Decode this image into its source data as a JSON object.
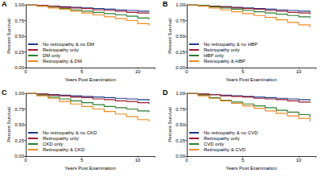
{
  "chart_data": [
    {
      "type": "line",
      "title": "A",
      "line_style": "step",
      "marker": "none",
      "grid": false,
      "legend": "lower left",
      "x_label": "Years Post Examination",
      "y_label": "Percent Survival",
      "x": [
        0,
        1,
        2,
        3,
        4,
        5,
        6,
        7,
        8,
        9,
        10,
        11
      ],
      "xlim": [
        0,
        11.5
      ],
      "xticks": [
        0,
        5,
        10
      ],
      "ylim": [
        0,
        1
      ],
      "yticks": [
        {
          "value": 0,
          "label": "0.00"
        },
        {
          "value": 0.25,
          "label": "0.25"
        },
        {
          "value": 0.5,
          "label": "0.50"
        },
        {
          "value": 0.75,
          "label": "0.75"
        },
        {
          "value": 1,
          "label": "1.00"
        }
      ],
      "series": [
        {
          "name": "No retinopathy & no DM",
          "color": "#1f3a8a",
          "values": [
            1,
            0.99,
            0.98,
            0.97,
            0.96,
            0.95,
            0.94,
            0.93,
            0.92,
            0.91,
            0.9,
            0.89
          ]
        },
        {
          "name": "Retinopathy only",
          "color": "#9b1c31",
          "values": [
            1,
            0.99,
            0.98,
            0.96,
            0.95,
            0.94,
            0.92,
            0.91,
            0.9,
            0.88,
            0.87,
            0.86
          ]
        },
        {
          "name": "DM only",
          "color": "#2e7d32",
          "values": [
            1,
            0.98,
            0.96,
            0.94,
            0.92,
            0.9,
            0.88,
            0.86,
            0.84,
            0.82,
            0.79,
            0.77
          ]
        },
        {
          "name": "Retinopathy & DM",
          "color": "#f08a24",
          "values": [
            1,
            0.98,
            0.95,
            0.93,
            0.9,
            0.87,
            0.84,
            0.81,
            0.78,
            0.75,
            0.7,
            0.67
          ]
        }
      ]
    },
    {
      "type": "line",
      "title": "B",
      "line_style": "step",
      "marker": "none",
      "grid": false,
      "legend": "lower left",
      "x_label": "Years Post Examination",
      "y_label": "Percent Survival",
      "x": [
        0,
        1,
        2,
        3,
        4,
        5,
        6,
        7,
        8,
        9,
        10,
        11
      ],
      "xlim": [
        0,
        11.5
      ],
      "xticks": [
        0,
        5,
        10
      ],
      "ylim": [
        0,
        1
      ],
      "yticks": [
        {
          "value": 0,
          "label": "0.00"
        },
        {
          "value": 0.25,
          "label": "0.25"
        },
        {
          "value": 0.5,
          "label": "0.50"
        },
        {
          "value": 0.75,
          "label": "0.75"
        },
        {
          "value": 1,
          "label": "1.00"
        }
      ],
      "series": [
        {
          "name": "No retinopathy & no HBP",
          "color": "#1f3a8a",
          "values": [
            1,
            0.99,
            0.98,
            0.97,
            0.96,
            0.95,
            0.94,
            0.93,
            0.92,
            0.91,
            0.9,
            0.88
          ]
        },
        {
          "name": "Retinopathy only",
          "color": "#9b1c31",
          "values": [
            1,
            0.99,
            0.98,
            0.97,
            0.95,
            0.94,
            0.93,
            0.91,
            0.9,
            0.88,
            0.87,
            0.85
          ]
        },
        {
          "name": "HBP only",
          "color": "#2e7d32",
          "values": [
            1,
            0.99,
            0.97,
            0.95,
            0.93,
            0.91,
            0.89,
            0.87,
            0.85,
            0.83,
            0.81,
            0.79
          ]
        },
        {
          "name": "Retinopathy & HBP",
          "color": "#f08a24",
          "values": [
            1,
            0.98,
            0.95,
            0.92,
            0.89,
            0.86,
            0.83,
            0.8,
            0.76,
            0.72,
            0.68,
            0.64
          ]
        }
      ]
    },
    {
      "type": "line",
      "title": "C",
      "line_style": "step",
      "marker": "none",
      "grid": false,
      "legend": "lower left",
      "x_label": "Years Post Examination",
      "y_label": "Percent Survival",
      "x": [
        0,
        1,
        2,
        3,
        4,
        5,
        6,
        7,
        8,
        9,
        10,
        11
      ],
      "xlim": [
        0,
        11.5
      ],
      "xticks": [
        0,
        5,
        10
      ],
      "ylim": [
        0,
        1
      ],
      "yticks": [
        {
          "value": 0,
          "label": "0.00"
        },
        {
          "value": 0.25,
          "label": "0.25"
        },
        {
          "value": 0.5,
          "label": "0.50"
        },
        {
          "value": 0.75,
          "label": "0.75"
        },
        {
          "value": 1,
          "label": "1.00"
        }
      ],
      "series": [
        {
          "name": "No retinopathy & no CKD",
          "color": "#1f3a8a",
          "values": [
            1,
            0.99,
            0.98,
            0.97,
            0.96,
            0.95,
            0.94,
            0.93,
            0.92,
            0.91,
            0.9,
            0.88
          ]
        },
        {
          "name": "Retinopathy only",
          "color": "#9b1c31",
          "values": [
            1,
            0.99,
            0.97,
            0.96,
            0.94,
            0.93,
            0.91,
            0.9,
            0.88,
            0.87,
            0.85,
            0.83
          ]
        },
        {
          "name": "CKD only",
          "color": "#2e7d32",
          "values": [
            1,
            0.97,
            0.94,
            0.91,
            0.88,
            0.85,
            0.82,
            0.79,
            0.77,
            0.75,
            0.72,
            0.7
          ]
        },
        {
          "name": "Retinopathy & CKD",
          "color": "#f08a24",
          "values": [
            1,
            0.96,
            0.92,
            0.87,
            0.83,
            0.79,
            0.75,
            0.71,
            0.67,
            0.63,
            0.58,
            0.55
          ]
        }
      ]
    },
    {
      "type": "line",
      "title": "D",
      "line_style": "step",
      "marker": "none",
      "grid": false,
      "legend": "lower left",
      "x_label": "Years Post Examination",
      "y_label": "Percent Survival",
      "x": [
        0,
        1,
        2,
        3,
        4,
        5,
        6,
        7,
        8,
        9,
        10,
        11
      ],
      "xlim": [
        0,
        11.5
      ],
      "xticks": [
        0,
        5,
        10
      ],
      "ylim": [
        0,
        1
      ],
      "yticks": [
        {
          "value": 0,
          "label": "0.00"
        },
        {
          "value": 0.25,
          "label": "0.25"
        },
        {
          "value": 0.5,
          "label": "0.50"
        },
        {
          "value": 0.75,
          "label": "0.75"
        },
        {
          "value": 1,
          "label": "1.00"
        }
      ],
      "series": [
        {
          "name": "No retinopathy & no CVD",
          "color": "#1f3a8a",
          "values": [
            1,
            0.99,
            0.98,
            0.97,
            0.96,
            0.95,
            0.94,
            0.93,
            0.92,
            0.91,
            0.9,
            0.88
          ]
        },
        {
          "name": "Retinopathy only",
          "color": "#9b1c31",
          "values": [
            1,
            0.99,
            0.98,
            0.96,
            0.95,
            0.94,
            0.92,
            0.91,
            0.9,
            0.88,
            0.86,
            0.85
          ]
        },
        {
          "name": "CVD only",
          "color": "#2e7d32",
          "values": [
            1,
            0.97,
            0.93,
            0.89,
            0.86,
            0.83,
            0.8,
            0.77,
            0.73,
            0.7,
            0.66,
            0.62
          ]
        },
        {
          "name": "Retinopathy & CVD",
          "color": "#f08a24",
          "values": [
            1,
            0.96,
            0.92,
            0.88,
            0.84,
            0.8,
            0.76,
            0.72,
            0.68,
            0.64,
            0.6,
            0.55
          ]
        }
      ]
    }
  ]
}
